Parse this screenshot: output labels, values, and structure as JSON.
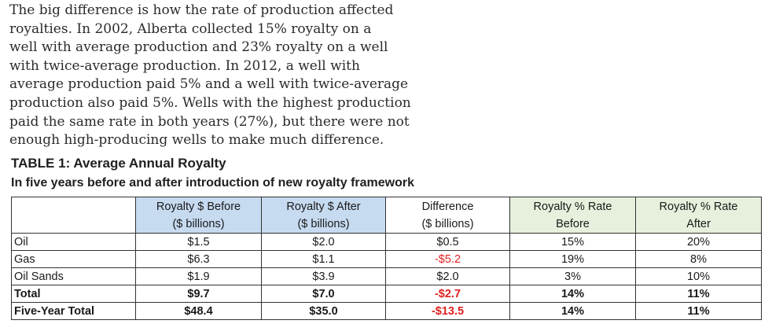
{
  "paragraph": {
    "lines": [
      "The big difference is how the rate of production affected",
      "royalties. In 2002, Alberta collected 15% royalty on a",
      "well with average production and 23% royalty on a well",
      "with twice-average production. In 2012, a well with",
      "average production paid 5% and a well with twice-average",
      "production also paid 5%. Wells with the highest production",
      "paid the same rate in both years (27%), but there were not",
      "enough high-producing wells to make much difference."
    ]
  },
  "table": {
    "title": "TABLE 1: Average Annual Royalty",
    "subtitle": "In five years before and after introduction of new royalty framework",
    "headers": [
      {
        "line1": "",
        "line2": "",
        "bg": "plain"
      },
      {
        "line1": "Royalty $ Before",
        "line2": "($ billions)",
        "bg": "blue"
      },
      {
        "line1": "Royalty $ After",
        "line2": "($ billions)",
        "bg": "blue"
      },
      {
        "line1": "Difference",
        "line2": "($ billions)",
        "bg": "plain"
      },
      {
        "line1": "Royalty % Rate",
        "line2": "Before",
        "bg": "green"
      },
      {
        "line1": "Royalty % Rate",
        "line2": "After",
        "bg": "green"
      }
    ],
    "rows": [
      {
        "label": "Oil",
        "before": "$1.5",
        "after": "$2.0",
        "difference": "$0.5",
        "negative": false,
        "rate_before": "15%",
        "rate_after": "20%",
        "bold": false
      },
      {
        "label": "Gas",
        "before": "$6.3",
        "after": "$1.1",
        "difference": "-$5.2",
        "negative": true,
        "rate_before": "19%",
        "rate_after": "8%",
        "bold": false
      },
      {
        "label": "Oil Sands",
        "before": "$1.9",
        "after": "$3.9",
        "difference": "$2.0",
        "negative": false,
        "rate_before": "3%",
        "rate_after": "10%",
        "bold": false
      },
      {
        "label": "Total",
        "before": "$9.7",
        "after": "$7.0",
        "difference": "-$2.7",
        "negative": true,
        "rate_before": "14%",
        "rate_after": "11%",
        "bold": true
      },
      {
        "label": "Five-Year Total",
        "before": "$48.4",
        "after": "$35.0",
        "difference": "-$13.5",
        "negative": true,
        "rate_before": "14%",
        "rate_after": "11%",
        "bold": true
      }
    ],
    "colors": {
      "header_blue": "#c6daf0",
      "header_green": "#e6f0dc",
      "negative": "#e02020",
      "border": "#333333"
    }
  }
}
